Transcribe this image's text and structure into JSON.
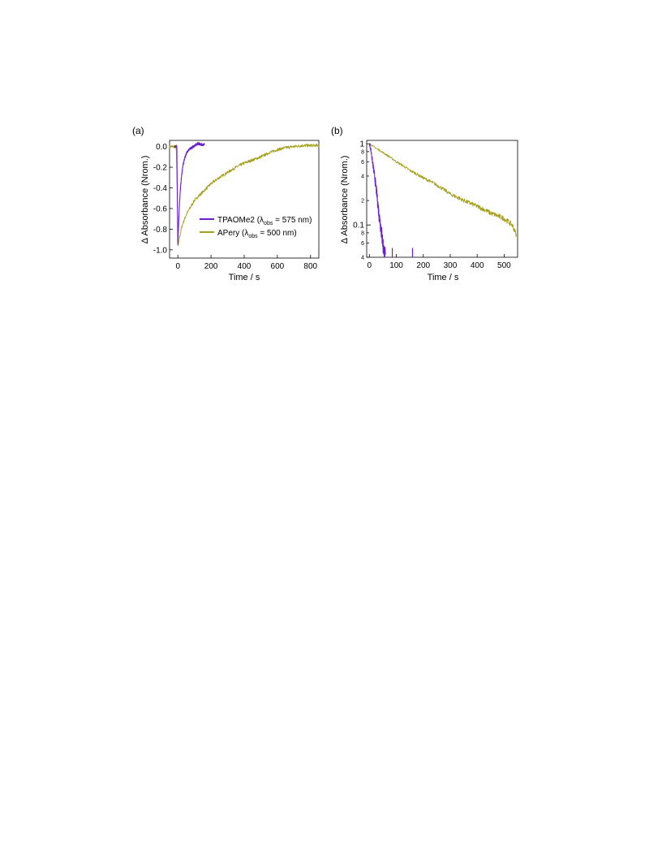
{
  "chart_data": [
    {
      "panel": "(a)",
      "type": "line",
      "xlabel": "Time  / s",
      "ylabel": "Δ Absorbance (Nrom.)",
      "xlim": [
        -50,
        850
      ],
      "ylim": [
        -1.08,
        0.06
      ],
      "xticks": [
        0,
        200,
        400,
        600,
        800
      ],
      "yticks": [
        0.0,
        -0.2,
        -0.4,
        -0.6,
        -0.8,
        -1.0
      ],
      "ytick_labels": [
        "0.0",
        "-0.2",
        "-0.4",
        "-0.6",
        "-0.8",
        "-1.0"
      ],
      "legend_position": "center-right",
      "series": [
        {
          "name": "TPAOMe2 (λobs = 575 nm)",
          "legend_main": "TPAOMe2 (λ",
          "legend_sub": "obs",
          "legend_tail": " = 575 nm)",
          "color": "#6a1fd1",
          "x": [
            -20,
            -6,
            -5,
            -2,
            0,
            5,
            10,
            15,
            20,
            25,
            30,
            40,
            50,
            60,
            80,
            100,
            120,
            140,
            160
          ],
          "y": [
            0.0,
            0.0,
            -0.2,
            -0.65,
            -0.97,
            -0.72,
            -0.55,
            -0.42,
            -0.32,
            -0.25,
            -0.19,
            -0.12,
            -0.07,
            -0.04,
            -0.015,
            0.01,
            0.03,
            0.02,
            0.02
          ]
        },
        {
          "name": "APery (λobs = 500 nm)",
          "legend_main": "APery (λ",
          "legend_sub": "obs",
          "legend_tail": " = 500 nm)",
          "color": "#a5a01c",
          "x": [
            -50,
            -10,
            -3,
            0,
            10,
            25,
            50,
            75,
            100,
            150,
            200,
            250,
            300,
            350,
            400,
            450,
            500,
            550,
            600,
            650,
            700,
            750,
            800,
            850
          ],
          "y": [
            0.0,
            0.0,
            -0.5,
            -0.97,
            -0.88,
            -0.77,
            -0.66,
            -0.59,
            -0.52,
            -0.44,
            -0.36,
            -0.3,
            -0.25,
            -0.2,
            -0.16,
            -0.13,
            -0.1,
            -0.06,
            -0.03,
            -0.01,
            0.0,
            0.01,
            0.01,
            0.01
          ]
        }
      ]
    },
    {
      "panel": "(b)",
      "type": "line",
      "xlabel": "Time  / s",
      "ylabel": "Δ Absorbance (Nrom.)",
      "xlim": [
        -10,
        550
      ],
      "ylim": [
        0.04,
        1.1
      ],
      "yscale": "log",
      "xticks": [
        0,
        100,
        200,
        300,
        400,
        500
      ],
      "ymajor_ticks": [
        1,
        0.1
      ],
      "ymajor_labels": [
        "1",
        "0.1"
      ],
      "yminor_ticks": [
        0.8,
        0.6,
        0.4,
        0.2,
        0.08,
        0.06,
        0.04
      ],
      "yminor_labels": [
        "8",
        "6",
        "4",
        "2",
        "8",
        "6",
        "4"
      ],
      "series": [
        {
          "name": "TPAOMe2",
          "color": "#6a1fd1",
          "x": [
            0,
            5,
            10,
            15,
            20,
            25,
            30,
            35,
            40,
            45,
            50,
            55,
            60
          ],
          "y": [
            1.0,
            0.85,
            0.65,
            0.5,
            0.38,
            0.28,
            0.2,
            0.14,
            0.11,
            0.08,
            0.06,
            0.045,
            0.04
          ],
          "spikes_x": [
            85,
            160
          ]
        },
        {
          "name": "APery",
          "color": "#a5a01c",
          "x": [
            0,
            25,
            50,
            100,
            150,
            200,
            250,
            300,
            350,
            400,
            450,
            500,
            530,
            545
          ],
          "y": [
            1.0,
            0.88,
            0.78,
            0.6,
            0.47,
            0.38,
            0.31,
            0.24,
            0.2,
            0.17,
            0.14,
            0.12,
            0.1,
            0.075
          ]
        }
      ]
    }
  ]
}
